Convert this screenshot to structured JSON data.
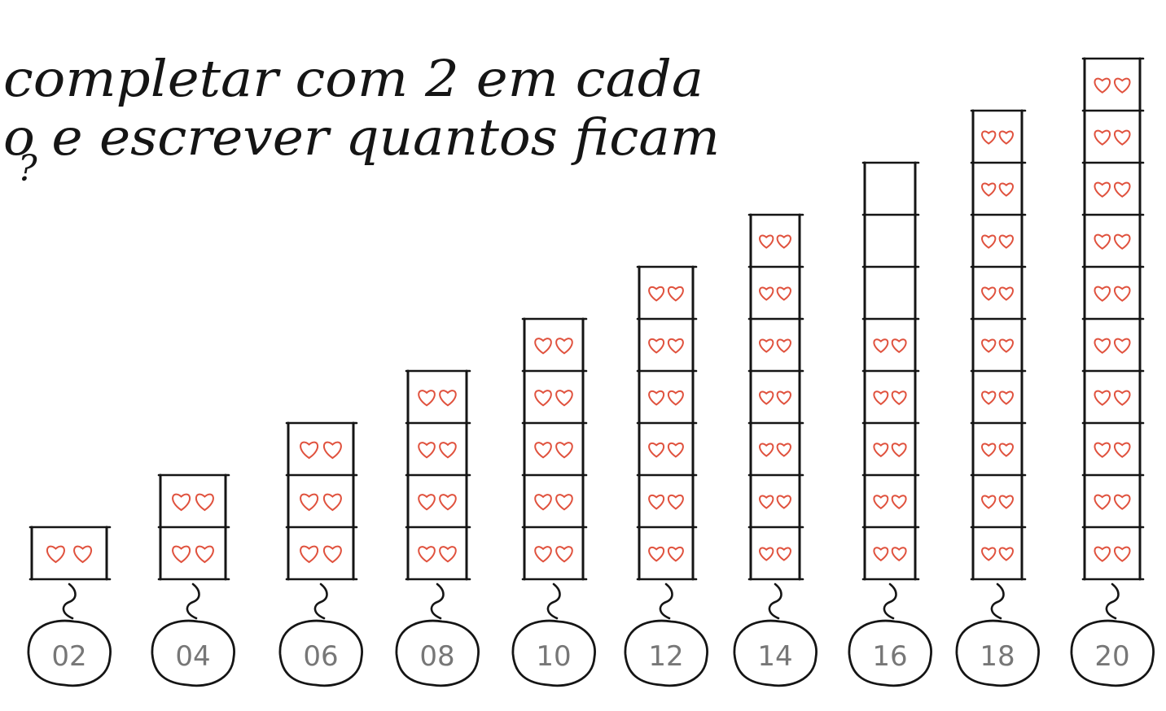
{
  "instruction": {
    "line1": "completar com 2 em cada",
    "line2": "o e escrever quantos ficam",
    "line3": "?"
  },
  "towers": [
    {
      "label": "02",
      "boxes": 1,
      "filled": 1
    },
    {
      "label": "04",
      "boxes": 2,
      "filled": 2
    },
    {
      "label": "06",
      "boxes": 3,
      "filled": 3
    },
    {
      "label": "08",
      "boxes": 4,
      "filled": 4
    },
    {
      "label": "10",
      "boxes": 5,
      "filled": 5
    },
    {
      "label": "12",
      "boxes": 6,
      "filled": 6
    },
    {
      "label": "14",
      "boxes": 7,
      "filled": 7
    },
    {
      "label": "16",
      "boxes": 8,
      "filled": 5
    },
    {
      "label": "18",
      "boxes": 9,
      "filled": 9
    },
    {
      "label": "20",
      "boxes": 10,
      "filled": 10
    }
  ],
  "colors": {
    "ink": "#151515",
    "heart": "#e0523e",
    "pencil": "#777777"
  }
}
